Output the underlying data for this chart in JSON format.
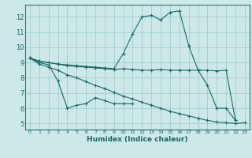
{
  "xlabel": "Humidex (Indice chaleur)",
  "bg_color": "#cde8e8",
  "grid_color": "#a8d0d0",
  "line_color": "#1a6868",
  "spine_color": "#2a7878",
  "xlim": [
    -0.5,
    23.5
  ],
  "ylim": [
    4.6,
    12.8
  ],
  "yticks": [
    5,
    6,
    7,
    8,
    9,
    10,
    11,
    12
  ],
  "xticks": [
    0,
    1,
    2,
    3,
    4,
    5,
    6,
    7,
    8,
    9,
    10,
    11,
    12,
    13,
    14,
    15,
    16,
    17,
    18,
    19,
    20,
    21,
    22,
    23
  ],
  "series": [
    {
      "x": [
        0,
        1,
        2,
        3,
        4,
        5,
        6,
        7,
        8,
        9,
        10,
        11,
        12,
        13,
        14,
        15,
        16,
        17,
        18,
        19,
        20,
        21,
        22
      ],
      "y": [
        9.3,
        9.1,
        9.0,
        8.9,
        8.85,
        8.8,
        8.75,
        8.7,
        8.65,
        8.6,
        9.6,
        10.9,
        12.0,
        12.1,
        11.8,
        12.3,
        12.4,
        10.1,
        8.5,
        7.5,
        6.0,
        6.0,
        5.2
      ]
    },
    {
      "x": [
        0,
        1,
        2,
        3,
        4,
        5,
        6,
        7,
        8,
        9,
        10,
        11,
        12,
        13,
        14,
        15,
        16,
        17,
        18,
        19,
        20,
        21,
        22
      ],
      "y": [
        9.3,
        9.1,
        9.0,
        8.9,
        8.8,
        8.75,
        8.7,
        8.65,
        8.6,
        8.55,
        8.6,
        8.55,
        8.5,
        8.5,
        8.55,
        8.5,
        8.5,
        8.5,
        8.5,
        8.5,
        8.45,
        8.5,
        5.2
      ]
    },
    {
      "x": [
        0,
        1,
        2,
        3,
        4,
        5,
        6,
        7,
        8,
        9,
        10,
        11
      ],
      "y": [
        9.3,
        9.0,
        8.85,
        7.8,
        6.0,
        6.2,
        6.3,
        6.7,
        6.5,
        6.3,
        6.3,
        6.3
      ]
    },
    {
      "x": [
        0,
        1,
        2,
        3,
        4,
        5,
        6,
        7,
        8,
        9,
        10,
        11,
        12,
        13,
        14,
        15,
        16,
        17,
        18,
        19,
        20,
        21,
        22,
        23
      ],
      "y": [
        9.3,
        8.9,
        8.7,
        8.5,
        8.2,
        8.0,
        7.75,
        7.5,
        7.3,
        7.05,
        6.8,
        6.6,
        6.4,
        6.2,
        6.0,
        5.8,
        5.65,
        5.5,
        5.35,
        5.2,
        5.1,
        5.05,
        5.0,
        5.05
      ]
    }
  ]
}
